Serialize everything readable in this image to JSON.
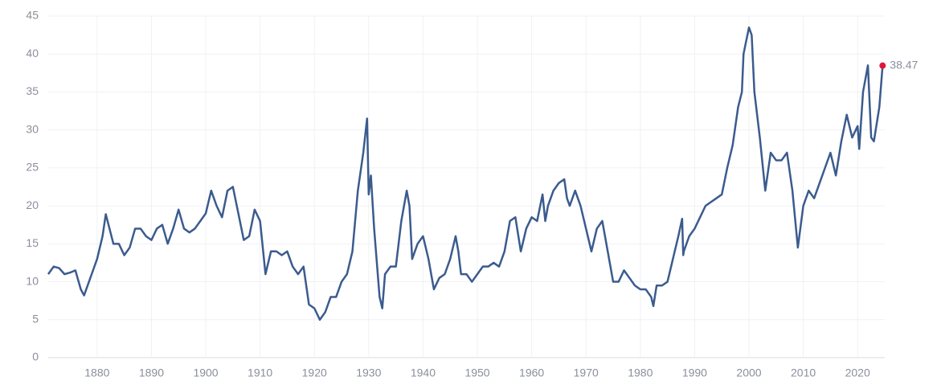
{
  "chart_data": {
    "type": "line",
    "x": [
      1871,
      1872,
      1873,
      1874,
      1875,
      1876,
      1877,
      1877.6,
      1879,
      1880,
      1881,
      1881.6,
      1883,
      1884,
      1885,
      1886,
      1887,
      1888,
      1889,
      1890,
      1891,
      1892,
      1893,
      1894,
      1895,
      1896,
      1897,
      1898,
      1899,
      1900,
      1901,
      1902,
      1903,
      1904,
      1905,
      1906,
      1907,
      1908,
      1909,
      1910,
      1911,
      1912,
      1913,
      1914,
      1915,
      1916,
      1917,
      1918,
      1919,
      1920,
      1921,
      1922,
      1923,
      1924,
      1925,
      1926,
      1927,
      1928,
      1929,
      1929.7,
      1930,
      1930.4,
      1931,
      1932,
      1932.5,
      1933,
      1934,
      1935,
      1936,
      1937,
      1937.5,
      1938,
      1939,
      1940,
      1941,
      1942,
      1943,
      1944,
      1945,
      1946,
      1946.5,
      1947,
      1948,
      1949,
      1950,
      1951,
      1952,
      1953,
      1954,
      1955,
      1956,
      1957,
      1958,
      1959,
      1960,
      1961,
      1962,
      1962.5,
      1963,
      1964,
      1965,
      1966,
      1966.5,
      1967,
      1968,
      1969,
      1970,
      1971,
      1972,
      1973,
      1974,
      1975,
      1976,
      1977,
      1978,
      1979,
      1980,
      1981,
      1982,
      1982.4,
      1983,
      1984,
      1985,
      1986,
      1987,
      1987.7,
      1987.9,
      1988,
      1989,
      1990,
      1991,
      1992,
      1993,
      1994,
      1995,
      1996,
      1997,
      1998,
      1998.7,
      1999,
      2000,
      2000.5,
      2001,
      2002,
      2003,
      2004,
      2005,
      2006,
      2007,
      2008,
      2009,
      2010,
      2011,
      2012,
      2013,
      2014,
      2015,
      2016,
      2017,
      2018,
      2019,
      2020,
      2020.3,
      2021,
      2021.9,
      2022.5,
      2023,
      2024,
      2024.6
    ],
    "series": [
      {
        "color": "#3b5b8e",
        "values": [
          11,
          12,
          11.8,
          11,
          11.2,
          11.5,
          9,
          8.2,
          11,
          13,
          16,
          18.9,
          15,
          15,
          13.5,
          14.5,
          17,
          17,
          16,
          15.5,
          17,
          17.5,
          15,
          17,
          19.5,
          17,
          16.5,
          17,
          18,
          19,
          22,
          20,
          18.5,
          22,
          22.5,
          19,
          15.5,
          16,
          19.5,
          18,
          11,
          14,
          14,
          13.5,
          14,
          12,
          11,
          12,
          7,
          6.5,
          5,
          6,
          8,
          8,
          10,
          11,
          14,
          22,
          27,
          31.5,
          21.5,
          24,
          17,
          8,
          6.5,
          11,
          12,
          12,
          18,
          22,
          20,
          13,
          15,
          16,
          13,
          9,
          10.5,
          11,
          13,
          16,
          14,
          11,
          11,
          10,
          11,
          12,
          12,
          12.5,
          12,
          14,
          18,
          18.5,
          14,
          17,
          18.5,
          18,
          21.5,
          18,
          20,
          22,
          23,
          23.5,
          21,
          20,
          22,
          20,
          17,
          14,
          17,
          18,
          14,
          10,
          10,
          11.5,
          10.5,
          9.5,
          9,
          9,
          8,
          6.8,
          9.5,
          9.5,
          10,
          13,
          16,
          18.3,
          13.5,
          14,
          16,
          17,
          18.5,
          20,
          20.5,
          21,
          21.5,
          25,
          28,
          33,
          35,
          40,
          43.5,
          42.5,
          35,
          29,
          22,
          27,
          26,
          26,
          27,
          22,
          14.5,
          20,
          22,
          21,
          23,
          25,
          27,
          24,
          28.5,
          32,
          29,
          30.5,
          27.5,
          35,
          38.5,
          29,
          28.5,
          33,
          38.47
        ]
      }
    ],
    "xlim": [
      1871,
      2025
    ],
    "xticks": [
      1880,
      1890,
      1900,
      1910,
      1920,
      1930,
      1940,
      1950,
      1960,
      1970,
      1980,
      1990,
      2000,
      2010,
      2020
    ],
    "ylim": [
      0,
      45
    ],
    "yticks": [
      0,
      5,
      10,
      15,
      20,
      25,
      30,
      35,
      40,
      45
    ],
    "grid": true,
    "last_point_color": "#e0173a"
  }
}
